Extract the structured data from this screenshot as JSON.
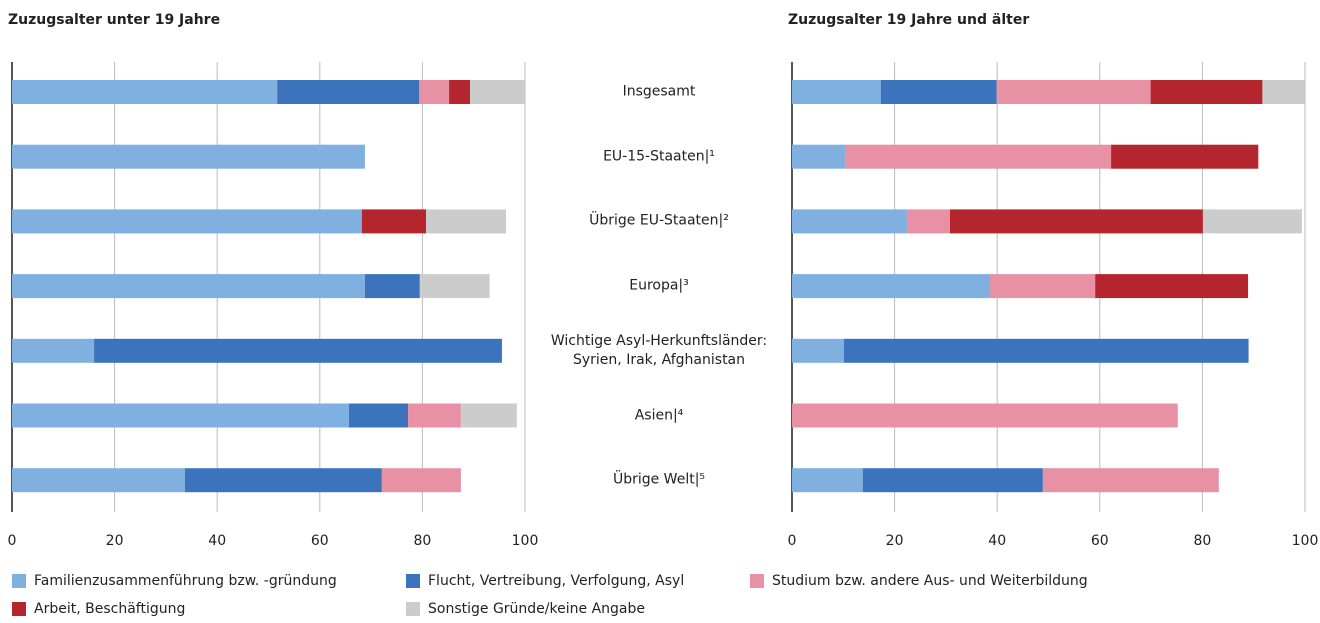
{
  "chart_data": [
    {
      "type": "bar",
      "orientation": "horizontal",
      "stacked": true,
      "title": "Zuzugsalter unter 19 Jahre",
      "categories": [
        "Insgesamt",
        "EU-15-Staaten|¹",
        "Übrige EU-Staaten|²",
        "Europa|³",
        "Wichtige Asyl-Herkunftsländer:\nSyrien, Irak, Afghanistan",
        "Asien|⁴",
        "Übrige Welt|⁵"
      ],
      "xlim": [
        0,
        100
      ],
      "xticks": [
        0,
        20,
        40,
        60,
        80,
        100
      ],
      "grid": true,
      "series": [
        {
          "name": "Familienzusammenführung bzw. -gründung",
          "color": "#7fb0e0",
          "values": [
            51.7,
            68.8,
            68.2,
            68.8,
            16.0,
            65.7,
            33.7
          ]
        },
        {
          "name": "Flucht, Vertreibung, Verfolgung, Asyl",
          "color": "#3b73bd",
          "values": [
            27.7,
            0,
            0,
            10.7,
            79.5,
            11.5,
            38.4
          ]
        },
        {
          "name": "Studium bzw. andere Aus- und Weiterbildung",
          "color": "#e891a5",
          "values": [
            5.8,
            0,
            0,
            0,
            0,
            10.3,
            15.4
          ]
        },
        {
          "name": "Arbeit, Beschäftigung",
          "color": "#b5252e",
          "values": [
            4.1,
            0,
            12.5,
            0,
            0,
            0,
            0
          ]
        },
        {
          "name": "Sonstige Gründe/keine Angabe",
          "color": "#cccccc",
          "values": [
            10.7,
            0,
            15.6,
            13.6,
            0,
            10.9,
            0
          ]
        }
      ]
    },
    {
      "type": "bar",
      "orientation": "horizontal",
      "stacked": true,
      "title": "Zuzugsalter 19 Jahre und älter",
      "xlim": [
        0,
        100
      ],
      "xticks": [
        0,
        20,
        40,
        60,
        80,
        100
      ],
      "grid": true,
      "series": [
        {
          "color": "#7fb0e0",
          "values": [
            17.3,
            10.5,
            22.4,
            38.6,
            10.1,
            0,
            13.8
          ]
        },
        {
          "color": "#3b73bd",
          "values": [
            22.6,
            0,
            0,
            0,
            78.9,
            0,
            35.1
          ]
        },
        {
          "color": "#e891a5",
          "values": [
            30.0,
            51.7,
            8.4,
            20.5,
            0,
            75.2,
            34.3
          ]
        },
        {
          "color": "#b5252e",
          "values": [
            21.8,
            28.7,
            49.3,
            29.8,
            0,
            0,
            0
          ]
        },
        {
          "color": "#cccccc",
          "values": [
            8.2,
            0,
            19.3,
            0,
            0,
            0,
            0
          ]
        }
      ]
    }
  ]
}
